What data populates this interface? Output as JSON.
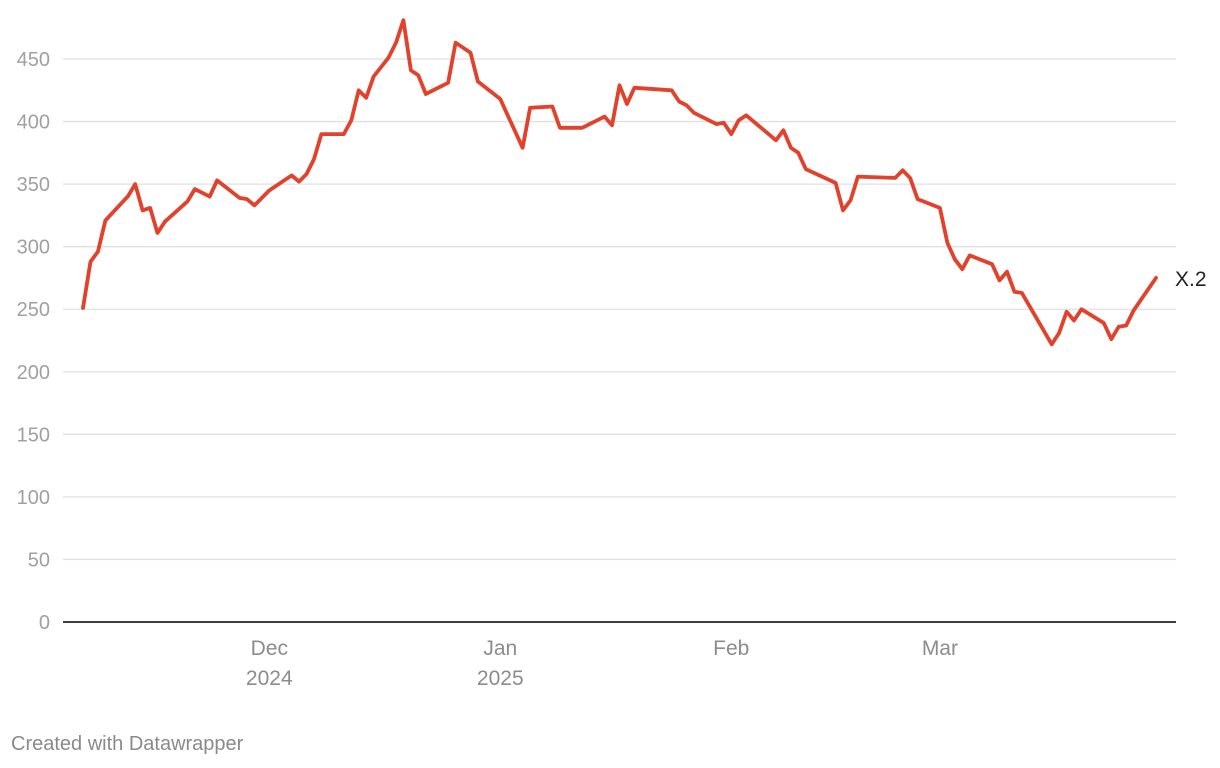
{
  "chart_data": {
    "type": "line",
    "title": "",
    "xlabel": "",
    "ylabel": "",
    "ylim": [
      0,
      480
    ],
    "y_ticks": [
      0,
      50,
      100,
      150,
      200,
      250,
      300,
      350,
      400,
      450
    ],
    "x_range": [
      "2024-11-04",
      "2025-03-26"
    ],
    "x_ticks": [
      {
        "date": "2024-12-01",
        "line1": "Dec",
        "line2": "2024"
      },
      {
        "date": "2025-01-01",
        "line1": "Jan",
        "line2": "2025"
      },
      {
        "date": "2025-02-01",
        "line1": "Feb",
        "line2": ""
      },
      {
        "date": "2025-03-01",
        "line1": "Mar",
        "line2": ""
      }
    ],
    "grid": true,
    "legend": "none",
    "series": [
      {
        "name": "X.2",
        "color": "#e2412c",
        "points": [
          [
            "2024-11-06",
            251
          ],
          [
            "2024-11-07",
            288
          ],
          [
            "2024-11-08",
            296
          ],
          [
            "2024-11-09",
            321
          ],
          [
            "2024-11-12",
            340
          ],
          [
            "2024-11-13",
            350
          ],
          [
            "2024-11-14",
            329
          ],
          [
            "2024-11-15",
            331
          ],
          [
            "2024-11-16",
            311
          ],
          [
            "2024-11-17",
            320
          ],
          [
            "2024-11-20",
            336
          ],
          [
            "2024-11-21",
            346
          ],
          [
            "2024-11-23",
            340
          ],
          [
            "2024-11-24",
            353
          ],
          [
            "2024-11-27",
            339
          ],
          [
            "2024-11-28",
            338
          ],
          [
            "2024-11-29",
            333
          ],
          [
            "2024-12-01",
            345
          ],
          [
            "2024-12-02",
            349
          ],
          [
            "2024-12-03",
            353
          ],
          [
            "2024-12-04",
            357
          ],
          [
            "2024-12-05",
            352
          ],
          [
            "2024-12-06",
            358
          ],
          [
            "2024-12-07",
            370
          ],
          [
            "2024-12-08",
            390
          ],
          [
            "2024-12-11",
            390
          ],
          [
            "2024-12-12",
            401
          ],
          [
            "2024-12-13",
            425
          ],
          [
            "2024-12-14",
            419
          ],
          [
            "2024-12-15",
            436
          ],
          [
            "2024-12-17",
            451
          ],
          [
            "2024-12-18",
            463
          ],
          [
            "2024-12-19",
            481
          ],
          [
            "2024-12-20",
            441
          ],
          [
            "2024-12-21",
            437
          ],
          [
            "2024-12-22",
            422
          ],
          [
            "2024-12-25",
            431
          ],
          [
            "2024-12-26",
            463
          ],
          [
            "2024-12-28",
            455
          ],
          [
            "2024-12-29",
            432
          ],
          [
            "2025-01-01",
            418
          ],
          [
            "2025-01-02",
            405
          ],
          [
            "2025-01-03",
            392
          ],
          [
            "2025-01-04",
            379
          ],
          [
            "2025-01-05",
            411
          ],
          [
            "2025-01-08",
            412
          ],
          [
            "2025-01-09",
            395
          ],
          [
            "2025-01-12",
            395
          ],
          [
            "2025-01-15",
            404
          ],
          [
            "2025-01-16",
            397
          ],
          [
            "2025-01-17",
            429
          ],
          [
            "2025-01-18",
            414
          ],
          [
            "2025-01-19",
            427
          ],
          [
            "2025-01-24",
            425
          ],
          [
            "2025-01-25",
            416
          ],
          [
            "2025-01-26",
            413
          ],
          [
            "2025-01-27",
            407
          ],
          [
            "2025-01-30",
            398
          ],
          [
            "2025-01-31",
            399
          ],
          [
            "2025-02-01",
            390
          ],
          [
            "2025-02-02",
            401
          ],
          [
            "2025-02-03",
            405
          ],
          [
            "2025-02-07",
            385
          ],
          [
            "2025-02-08",
            393
          ],
          [
            "2025-02-09",
            379
          ],
          [
            "2025-02-10",
            375
          ],
          [
            "2025-02-11",
            362
          ],
          [
            "2025-02-15",
            351
          ],
          [
            "2025-02-16",
            329
          ],
          [
            "2025-02-17",
            337
          ],
          [
            "2025-02-18",
            356
          ],
          [
            "2025-02-23",
            355
          ],
          [
            "2025-02-24",
            361
          ],
          [
            "2025-02-25",
            355
          ],
          [
            "2025-02-26",
            338
          ],
          [
            "2025-03-01",
            331
          ],
          [
            "2025-03-02",
            303
          ],
          [
            "2025-03-03",
            290
          ],
          [
            "2025-03-04",
            282
          ],
          [
            "2025-03-05",
            293
          ],
          [
            "2025-03-08",
            286
          ],
          [
            "2025-03-09",
            273
          ],
          [
            "2025-03-10",
            280
          ],
          [
            "2025-03-11",
            264
          ],
          [
            "2025-03-12",
            263
          ],
          [
            "2025-03-16",
            222
          ],
          [
            "2025-03-17",
            231
          ],
          [
            "2025-03-18",
            248
          ],
          [
            "2025-03-19",
            241
          ],
          [
            "2025-03-20",
            250
          ],
          [
            "2025-03-23",
            239
          ],
          [
            "2025-03-24",
            226
          ],
          [
            "2025-03-25",
            236
          ],
          [
            "2025-03-26",
            237
          ],
          [
            "2025-03-27",
            249
          ],
          [
            "2025-03-30",
            275
          ]
        ]
      }
    ]
  },
  "footer": {
    "credit": "Created with Datawrapper"
  }
}
